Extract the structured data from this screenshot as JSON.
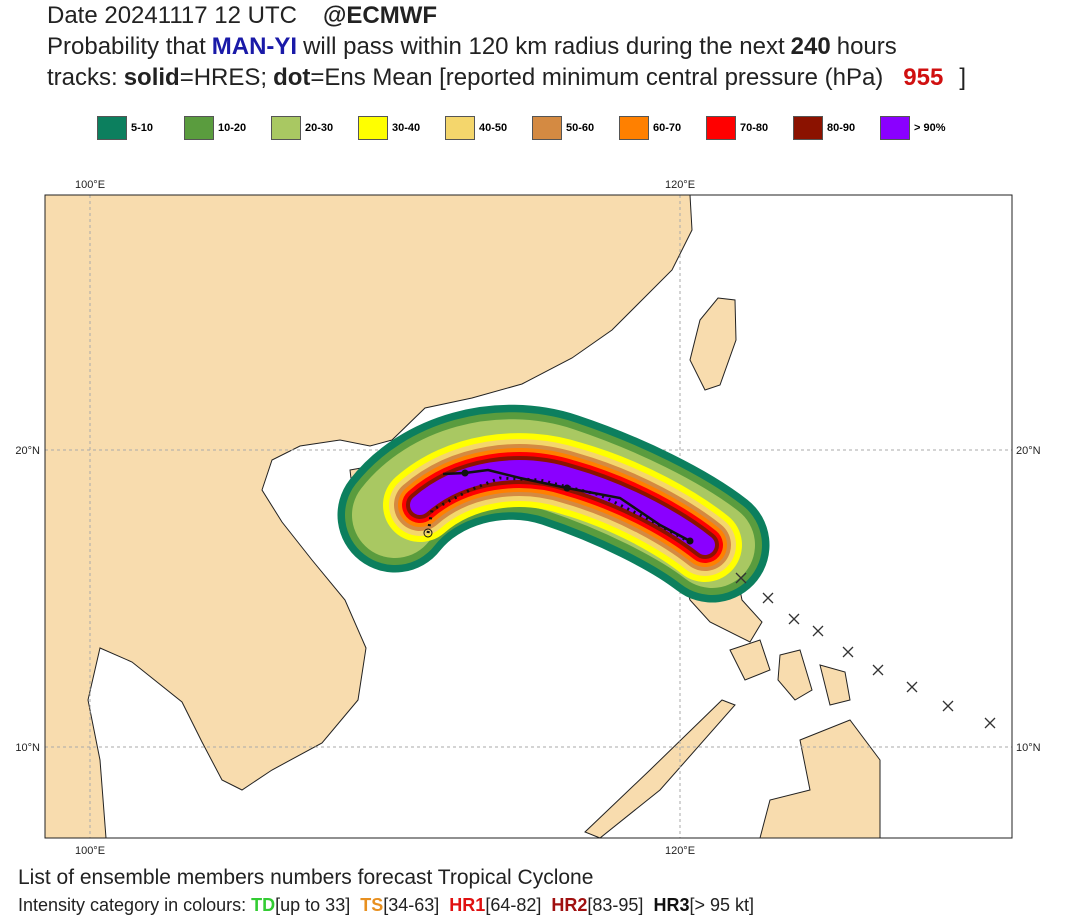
{
  "header": {
    "date": "Date 20241117 12 UTC",
    "source": "@ECMWF",
    "line2": [
      "Probability that",
      "MAN-YI",
      "will pass within 120 km radius during the next",
      "240",
      "hours"
    ],
    "line3": [
      "tracks:",
      "solid",
      "=HRES;",
      "dot",
      "=Ens Mean [reported minimum central pressure (hPa)",
      "955",
      "]"
    ]
  },
  "legend": [
    {
      "label": "5-10",
      "color": "#0c7f5e"
    },
    {
      "label": "10-20",
      "color": "#5a9c3e"
    },
    {
      "label": "20-30",
      "color": "#a9c862"
    },
    {
      "label": "30-40",
      "color": "#ffff00"
    },
    {
      "label": "40-50",
      "color": "#f4d66c"
    },
    {
      "label": "50-60",
      "color": "#d48a42"
    },
    {
      "label": "60-70",
      "color": "#ff8000"
    },
    {
      "label": "70-80",
      "color": "#ff0000"
    },
    {
      "label": "80-90",
      "color": "#8b1200"
    },
    {
      "label": "> 90%",
      "color": "#8a00ff"
    }
  ],
  "map": {
    "lon_labels": [
      "100°E",
      "120°E"
    ],
    "lat_labels": [
      "20°N",
      "10°N"
    ]
  },
  "footer": {
    "title": "List of ensemble members numbers forecast Tropical Cyclone",
    "line": [
      "Intensity category in colours:",
      "TD",
      "[up to 33]",
      "TS",
      "[34-63]",
      "HR1",
      "[64-82]",
      "HR2",
      "[83-95]",
      "HR3",
      "[> 95 kt]"
    ]
  }
}
